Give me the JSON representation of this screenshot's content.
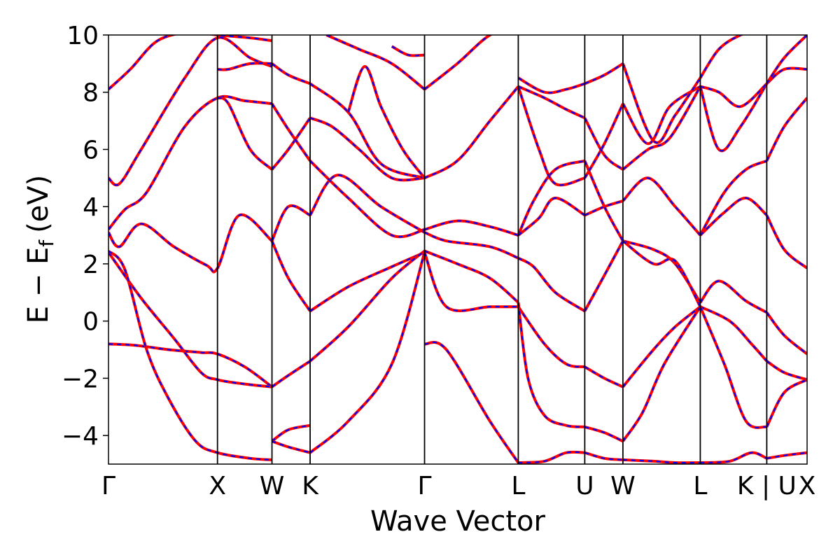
{
  "chart_data": {
    "type": "line",
    "title": "",
    "xlabel": "Wave Vector",
    "ylabel_main": "E − E",
    "ylabel_sub": "f",
    "ylabel_unit": "(eV)",
    "ylim": [
      -5,
      10
    ],
    "xlim": [
      0,
      6.41
    ],
    "grid": false,
    "legend": "none",
    "y_ticks": [
      -4,
      -2,
      0,
      2,
      4,
      6,
      8,
      10
    ],
    "y_tick_labels": [
      "−4",
      "−2",
      "0",
      "2",
      "4",
      "6",
      "8",
      "10"
    ],
    "k_points": [
      {
        "label": "Γ",
        "x": 0.0
      },
      {
        "label": "X",
        "x": 1.0
      },
      {
        "label": "W",
        "x": 1.5
      },
      {
        "label": "K",
        "x": 1.85
      },
      {
        "label": "Γ",
        "x": 2.9
      },
      {
        "label": "L",
        "x": 3.76
      },
      {
        "label": "U",
        "x": 4.37
      },
      {
        "label": "W",
        "x": 4.72
      },
      {
        "label": "L",
        "x": 5.43
      },
      {
        "label": "K | U",
        "x": 6.04
      },
      {
        "label": "X",
        "x": 6.41
      }
    ],
    "colors": {
      "bands_solid": "#ff0000",
      "bands_dashed": "#0000ff",
      "frame": "#000000"
    },
    "series": [
      {
        "x": [
          0,
          0.25,
          0.55,
          0.85,
          1.0,
          1.25,
          1.5
        ],
        "y": [
          -0.8,
          -0.85,
          -1.0,
          -1.1,
          -1.15,
          -1.6,
          -2.3
        ]
      },
      {
        "x": [
          0,
          0.3,
          0.6,
          0.85,
          1.0,
          1.25,
          1.5
        ],
        "y": [
          2.4,
          0.8,
          -0.6,
          -1.8,
          -2.05,
          -2.2,
          -2.3
        ]
      },
      {
        "x": [
          0,
          0.15,
          0.35,
          0.55,
          0.8,
          1.0,
          1.3,
          1.5
        ],
        "y": [
          2.45,
          1.8,
          -1.0,
          -2.7,
          -4.2,
          -4.6,
          -4.8,
          -4.85
        ]
      },
      {
        "x": [
          0,
          0.1,
          0.3,
          0.6,
          0.9,
          1.0,
          1.2,
          1.5
        ],
        "y": [
          3.1,
          2.6,
          3.4,
          2.6,
          1.95,
          1.85,
          3.7,
          2.8
        ]
      },
      {
        "x": [
          0,
          0.1,
          0.3,
          0.7,
          1.0,
          1.3,
          1.5
        ],
        "y": [
          5.0,
          4.8,
          6.0,
          8.5,
          9.9,
          9.2,
          8.9
        ]
      },
      {
        "x": [
          0,
          0.2,
          0.45,
          0.75,
          1.0,
          1.3,
          1.5
        ],
        "y": [
          8.1,
          8.8,
          9.8,
          10.1,
          10.0,
          9.9,
          9.8
        ]
      },
      {
        "x": [
          0,
          0.15,
          0.35,
          0.7,
          1.0,
          1.25,
          1.5
        ],
        "y": [
          3.2,
          3.9,
          4.5,
          6.8,
          7.8,
          7.7,
          7.6
        ]
      },
      {
        "x": [
          1.0,
          1.1,
          1.3,
          1.5
        ],
        "y": [
          7.8,
          7.6,
          6.0,
          5.3
        ]
      },
      {
        "x": [
          1.0,
          1.1,
          1.3,
          1.5
        ],
        "y": [
          8.8,
          8.8,
          9.0,
          9.0
        ]
      },
      {
        "x": [
          1.5,
          1.65,
          1.85
        ],
        "y": [
          2.8,
          1.5,
          0.35
        ]
      },
      {
        "x": [
          1.5,
          1.65,
          1.85
        ],
        "y": [
          2.8,
          4.0,
          3.7
        ]
      },
      {
        "x": [
          1.5,
          1.65,
          1.85
        ],
        "y": [
          5.3,
          6.0,
          7.1
        ]
      },
      {
        "x": [
          1.5,
          1.65,
          1.85
        ],
        "y": [
          7.6,
          6.7,
          5.6
        ]
      },
      {
        "x": [
          1.5,
          1.65,
          1.85
        ],
        "y": [
          9.0,
          8.6,
          8.3
        ]
      },
      {
        "x": [
          1.5,
          1.65,
          1.85
        ],
        "y": [
          -2.3,
          -1.9,
          -1.4
        ]
      },
      {
        "x": [
          1.5,
          1.65,
          1.85
        ],
        "y": [
          -4.2,
          -3.8,
          -3.65
        ]
      },
      {
        "x": [
          1.5,
          1.65,
          1.85
        ],
        "y": [
          -4.2,
          -4.4,
          -4.6
        ]
      },
      {
        "x": [
          1.85,
          2.2,
          2.6,
          2.9
        ],
        "y": [
          0.35,
          1.2,
          1.9,
          2.4
        ]
      },
      {
        "x": [
          1.85,
          2.2,
          2.6,
          2.9
        ],
        "y": [
          -1.4,
          -0.2,
          1.5,
          2.45
        ]
      },
      {
        "x": [
          1.85,
          2.2,
          2.6,
          2.9
        ],
        "y": [
          -4.6,
          -3.5,
          -1.5,
          2.4
        ]
      },
      {
        "x": [
          1.85,
          2.1,
          2.5,
          2.9
        ],
        "y": [
          3.7,
          5.1,
          4.0,
          3.1
        ]
      },
      {
        "x": [
          1.85,
          2.2,
          2.6,
          2.9
        ],
        "y": [
          5.6,
          4.3,
          3.0,
          3.2
        ]
      },
      {
        "x": [
          1.85,
          2.05,
          2.3,
          2.6,
          2.9
        ],
        "y": [
          7.1,
          6.8,
          6.0,
          5.0,
          5.0
        ]
      },
      {
        "x": [
          1.85,
          2.2,
          2.5,
          2.9
        ],
        "y": [
          8.3,
          7.3,
          5.5,
          5.0
        ]
      },
      {
        "x": [
          2.0,
          2.3,
          2.6,
          2.9
        ],
        "y": [
          10.0,
          9.5,
          9.0,
          8.1
        ]
      },
      {
        "x": [
          2.2,
          2.35,
          2.5,
          2.7,
          2.9
        ],
        "y": [
          7.3,
          8.9,
          7.5,
          6.0,
          5.0
        ]
      },
      {
        "x": [
          2.6,
          2.75,
          2.9
        ],
        "y": [
          9.6,
          9.3,
          9.3
        ]
      },
      {
        "x": [
          2.9,
          3.1,
          3.5,
          3.76
        ],
        "y": [
          -0.8,
          -1.0,
          -3.5,
          -4.95
        ]
      },
      {
        "x": [
          2.9,
          3.1,
          3.5,
          3.76
        ],
        "y": [
          2.4,
          0.5,
          0.5,
          0.5
        ]
      },
      {
        "x": [
          2.9,
          3.2,
          3.5,
          3.76
        ],
        "y": [
          2.45,
          2.0,
          1.5,
          0.65
        ]
      },
      {
        "x": [
          2.9,
          3.1,
          3.5,
          3.76
        ],
        "y": [
          3.1,
          2.8,
          2.6,
          2.2
        ]
      },
      {
        "x": [
          2.9,
          3.2,
          3.5,
          3.76
        ],
        "y": [
          3.2,
          3.5,
          3.3,
          3.0
        ]
      },
      {
        "x": [
          2.9,
          3.2,
          3.5,
          3.76
        ],
        "y": [
          5.0,
          5.6,
          7.0,
          8.2
        ]
      },
      {
        "x": [
          2.9,
          3.2,
          3.5,
          3.76
        ],
        "y": [
          8.1,
          9.0,
          10.0,
          10.3
        ]
      },
      {
        "x": [
          3.76,
          4.0,
          4.2,
          4.37
        ],
        "y": [
          0.5,
          -0.8,
          -1.5,
          -1.6
        ]
      },
      {
        "x": [
          3.76,
          3.85,
          4.0,
          4.2,
          4.37
        ],
        "y": [
          0.65,
          -2.0,
          -3.3,
          -3.65,
          -3.7
        ]
      },
      {
        "x": [
          3.76,
          3.9,
          4.1,
          4.37
        ],
        "y": [
          2.2,
          1.9,
          1.0,
          0.35
        ]
      },
      {
        "x": [
          3.76,
          3.9,
          4.1,
          4.37
        ],
        "y": [
          3.0,
          4.2,
          5.3,
          5.6
        ]
      },
      {
        "x": [
          3.76,
          3.95,
          4.1,
          4.37
        ],
        "y": [
          3.0,
          3.6,
          4.3,
          3.7
        ]
      },
      {
        "x": [
          3.76,
          3.95,
          4.1,
          4.37
        ],
        "y": [
          8.2,
          6.0,
          4.8,
          5.0
        ]
      },
      {
        "x": [
          3.76,
          4.0,
          4.2,
          4.37
        ],
        "y": [
          8.2,
          7.8,
          7.4,
          7.1
        ]
      },
      {
        "x": [
          3.76,
          4.0,
          4.2,
          4.37
        ],
        "y": [
          8.5,
          8.0,
          8.1,
          8.3
        ]
      },
      {
        "x": [
          3.76,
          4.0,
          4.2,
          4.37
        ],
        "y": [
          -4.95,
          -4.9,
          -4.6,
          -4.6
        ]
      },
      {
        "x": [
          4.37,
          4.55,
          4.72
        ],
        "y": [
          -3.7,
          -3.9,
          -4.2
        ]
      },
      {
        "x": [
          4.37,
          4.55,
          4.72
        ],
        "y": [
          -1.6,
          -2.0,
          -2.3
        ]
      },
      {
        "x": [
          4.37,
          4.55,
          4.72
        ],
        "y": [
          0.35,
          1.6,
          2.8
        ]
      },
      {
        "x": [
          4.37,
          4.55,
          4.72
        ],
        "y": [
          3.7,
          4.0,
          4.2
        ]
      },
      {
        "x": [
          4.37,
          4.55,
          4.72
        ],
        "y": [
          5.6,
          4.0,
          2.8
        ]
      },
      {
        "x": [
          4.37,
          4.55,
          4.72
        ],
        "y": [
          5.0,
          6.2,
          7.6
        ]
      },
      {
        "x": [
          4.37,
          4.55,
          4.72
        ],
        "y": [
          7.1,
          5.8,
          5.3
        ]
      },
      {
        "x": [
          4.37,
          4.55,
          4.72
        ],
        "y": [
          8.3,
          8.6,
          9.0
        ]
      },
      {
        "x": [
          4.37,
          4.55,
          4.72
        ],
        "y": [
          -4.6,
          -4.8,
          -4.85
        ]
      },
      {
        "x": [
          4.72,
          5.0,
          5.2,
          5.43
        ],
        "y": [
          -2.3,
          -1.0,
          -0.2,
          0.5
        ]
      },
      {
        "x": [
          4.72,
          4.9,
          5.1,
          5.43
        ],
        "y": [
          -4.2,
          -3.2,
          -1.5,
          0.5
        ]
      },
      {
        "x": [
          4.72,
          5.0,
          5.2,
          5.43
        ],
        "y": [
          2.8,
          2.5,
          2.0,
          0.65
        ]
      },
      {
        "x": [
          4.72,
          5.0,
          5.2,
          5.43
        ],
        "y": [
          2.8,
          2.0,
          2.1,
          0.5
        ]
      },
      {
        "x": [
          4.72,
          4.95,
          5.2,
          5.43
        ],
        "y": [
          4.2,
          5.0,
          4.0,
          3.0
        ]
      },
      {
        "x": [
          4.72,
          4.95,
          5.15,
          5.43
        ],
        "y": [
          5.3,
          6.0,
          6.4,
          8.2
        ]
      },
      {
        "x": [
          4.72,
          4.95,
          5.15,
          5.43
        ],
        "y": [
          7.6,
          6.2,
          7.5,
          8.2
        ]
      },
      {
        "x": [
          4.72,
          5.0,
          5.2,
          5.43
        ],
        "y": [
          9.0,
          6.3,
          7.2,
          8.5
        ]
      },
      {
        "x": [
          4.72,
          5.0,
          5.2,
          5.43
        ],
        "y": [
          -4.85,
          -4.9,
          -4.95,
          -4.95
        ]
      },
      {
        "x": [
          5.43,
          5.7,
          5.9,
          6.04
        ],
        "y": [
          0.5,
          0.0,
          -0.8,
          -1.4
        ]
      },
      {
        "x": [
          5.43,
          5.6,
          5.85,
          6.04
        ],
        "y": [
          0.65,
          1.4,
          0.7,
          0.3
        ]
      },
      {
        "x": [
          5.43,
          5.65,
          5.85,
          6.04
        ],
        "y": [
          0.5,
          -1.5,
          -3.5,
          -3.7
        ]
      },
      {
        "x": [
          5.43,
          5.65,
          5.85,
          6.04
        ],
        "y": [
          3.0,
          4.5,
          5.3,
          5.6
        ]
      },
      {
        "x": [
          5.43,
          5.65,
          5.85,
          6.04
        ],
        "y": [
          3.0,
          3.8,
          4.3,
          3.7
        ]
      },
      {
        "x": [
          5.43,
          5.6,
          5.8,
          6.04
        ],
        "y": [
          8.2,
          6.0,
          6.8,
          8.3
        ]
      },
      {
        "x": [
          5.43,
          5.6,
          5.8,
          6.04
        ],
        "y": [
          8.2,
          8.0,
          7.5,
          8.3
        ]
      },
      {
        "x": [
          5.43,
          5.6,
          5.8,
          6.04
        ],
        "y": [
          8.5,
          9.5,
          10.0,
          10.3
        ]
      },
      {
        "x": [
          5.43,
          5.7,
          5.9,
          6.04
        ],
        "y": [
          -4.95,
          -4.9,
          -4.6,
          -4.8
        ]
      },
      {
        "x": [
          6.04,
          6.2,
          6.41
        ],
        "y": [
          -1.4,
          -1.8,
          -2.05
        ]
      },
      {
        "x": [
          6.04,
          6.2,
          6.41
        ],
        "y": [
          0.3,
          -0.5,
          -1.15
        ]
      },
      {
        "x": [
          6.04,
          6.2,
          6.41
        ],
        "y": [
          -3.7,
          -2.5,
          -2.05
        ]
      },
      {
        "x": [
          6.04,
          6.2,
          6.41
        ],
        "y": [
          3.7,
          2.5,
          1.85
        ]
      },
      {
        "x": [
          6.04,
          6.2,
          6.41
        ],
        "y": [
          5.6,
          6.8,
          7.8
        ]
      },
      {
        "x": [
          6.04,
          6.2,
          6.41
        ],
        "y": [
          8.3,
          8.8,
          8.8
        ]
      },
      {
        "x": [
          6.04,
          6.2,
          6.41
        ],
        "y": [
          8.3,
          9.2,
          10.0
        ]
      },
      {
        "x": [
          6.04,
          6.2,
          6.41
        ],
        "y": [
          -4.8,
          -4.7,
          -4.6
        ]
      }
    ]
  }
}
